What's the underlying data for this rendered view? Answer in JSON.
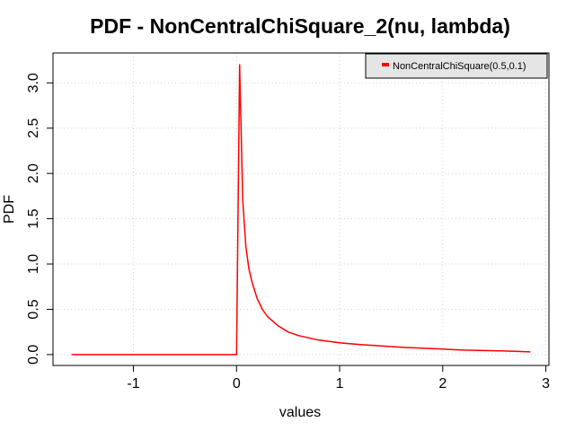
{
  "chart_data": {
    "type": "line",
    "title": "PDF - NonCentralChiSquare_2(nu, lambda)",
    "xlabel": "values",
    "ylabel": "PDF",
    "xlim": [
      -1.78,
      3.03
    ],
    "ylim": [
      -0.12,
      3.33
    ],
    "x_ticks": [
      -1,
      0,
      1,
      2,
      3
    ],
    "x_tick_labels": [
      "-1",
      "0",
      "1",
      "2",
      "3"
    ],
    "y_ticks": [
      0.0,
      0.5,
      1.0,
      1.5,
      2.0,
      2.5,
      3.0
    ],
    "y_tick_labels": [
      "0.0",
      "0.5",
      "1.0",
      "1.5",
      "2.0",
      "2.5",
      "3.0"
    ],
    "grid": true,
    "legend_position": "top-right",
    "colors": {
      "series": "#ff0000",
      "grid": "#d3d3d3",
      "legend_bg": "#e5e5e5"
    },
    "series": [
      {
        "name": "NonCentralChiSquare(0.5,0.1)",
        "x": [
          -1.6,
          -1.2,
          -0.8,
          -0.4,
          -0.02,
          0.0,
          0.03,
          0.06,
          0.09,
          0.12,
          0.15,
          0.2,
          0.25,
          0.3,
          0.4,
          0.5,
          0.6,
          0.8,
          1.0,
          1.2,
          1.4,
          1.6,
          1.8,
          2.0,
          2.2,
          2.4,
          2.6,
          2.85
        ],
        "y": [
          0.0,
          0.0,
          0.0,
          0.0,
          0.0,
          0.0,
          3.2,
          1.7,
          1.2,
          0.95,
          0.8,
          0.62,
          0.5,
          0.42,
          0.32,
          0.25,
          0.21,
          0.16,
          0.13,
          0.11,
          0.095,
          0.08,
          0.07,
          0.06,
          0.05,
          0.045,
          0.04,
          0.03
        ]
      }
    ]
  }
}
